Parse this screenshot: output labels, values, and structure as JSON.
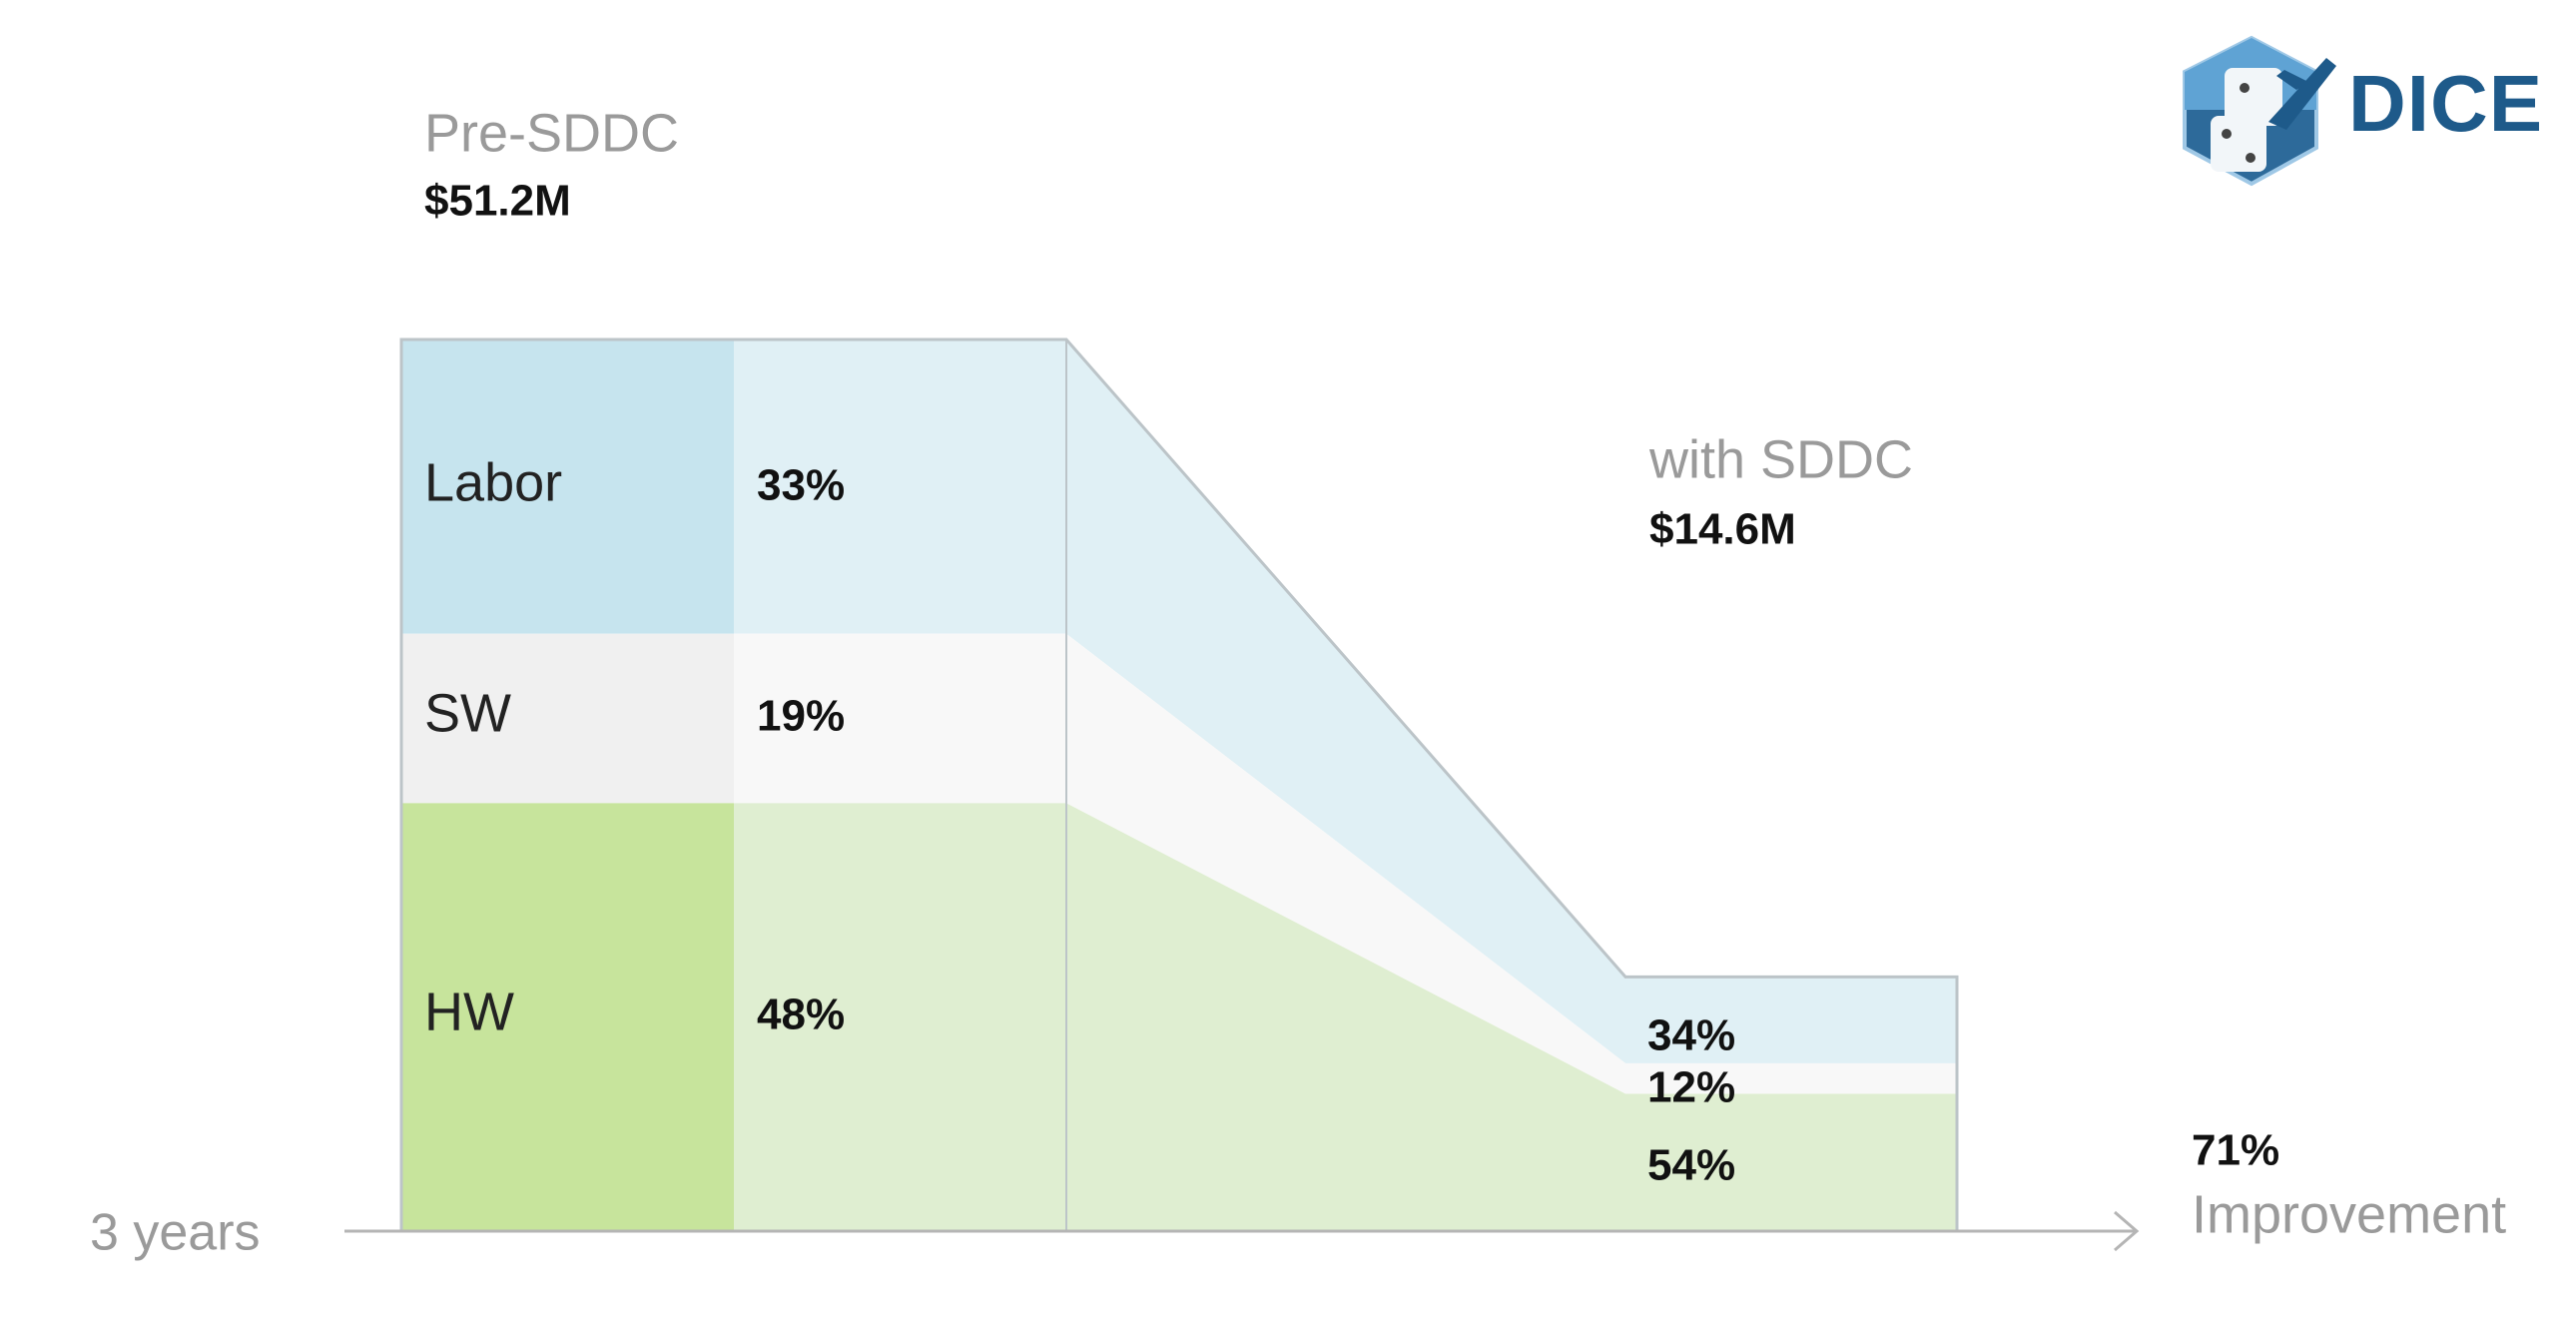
{
  "logo": {
    "text": "DICE"
  },
  "chart_data": {
    "type": "area",
    "x_label": "3 years",
    "before": {
      "label": "Pre-SDDC",
      "total": "$51.2M",
      "total_value": 51.2
    },
    "after": {
      "label": "with SDDC",
      "total": "$14.6M",
      "total_value": 14.6
    },
    "categories": [
      "Labor",
      "SW",
      "HW"
    ],
    "series": [
      {
        "name": "Labor",
        "before_pct": 33,
        "after_pct": 34,
        "before_label": "33%",
        "after_label": "34%"
      },
      {
        "name": "SW",
        "before_pct": 19,
        "after_pct": 12,
        "before_label": "19%",
        "after_label": "12%"
      },
      {
        "name": "HW",
        "before_pct": 48,
        "after_pct": 54,
        "before_label": "48%",
        "after_label": "54%"
      }
    ],
    "improvement": {
      "value": "71%",
      "label": "Improvement"
    },
    "colors": {
      "labor_dark": "#c6e4ee",
      "labor_light": "#e0f0f5",
      "sw_dark": "#f0f0f0",
      "sw_light": "#f8f8f8",
      "hw_dark": "#c7e49c",
      "hw_light": "#dfeed1",
      "axis": "#b5b5b5",
      "border": "#bcc4c8"
    }
  }
}
